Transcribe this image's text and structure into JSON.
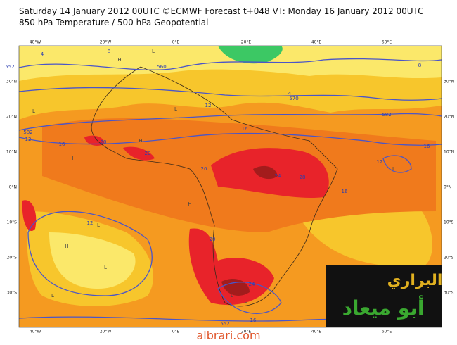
{
  "header": {
    "line1": "Saturday 14 January 2012 00UTC ©ECMWF Forecast t+048 VT: Monday 16 January 2012 00UTC",
    "line2": "850 hPa Temperature / 500 hPa Geopotential"
  },
  "map": {
    "longitude_labels": [
      "40°W",
      "20°W",
      "0°E",
      "20°E",
      "40°E",
      "60°E"
    ],
    "latitude_labels": [
      "30°N",
      "20°N",
      "10°N",
      "0°N",
      "10°S",
      "20°S",
      "30°S"
    ],
    "contour_labels": [
      552,
      560,
      570,
      582,
      582,
      552,
      4,
      8,
      4,
      12,
      16,
      12,
      16,
      20,
      20,
      20,
      24,
      28,
      16,
      12,
      20,
      24,
      16,
      16,
      8,
      12
    ],
    "pressure_centers": [
      "H",
      "L",
      "L",
      "H",
      "L",
      "H",
      "H",
      "L",
      "L",
      "H",
      "L",
      "H",
      "L",
      "L"
    ]
  },
  "watermark": {
    "line1": "البراري",
    "line2": "أبو ميعاد"
  },
  "footer": "albrari.com"
}
